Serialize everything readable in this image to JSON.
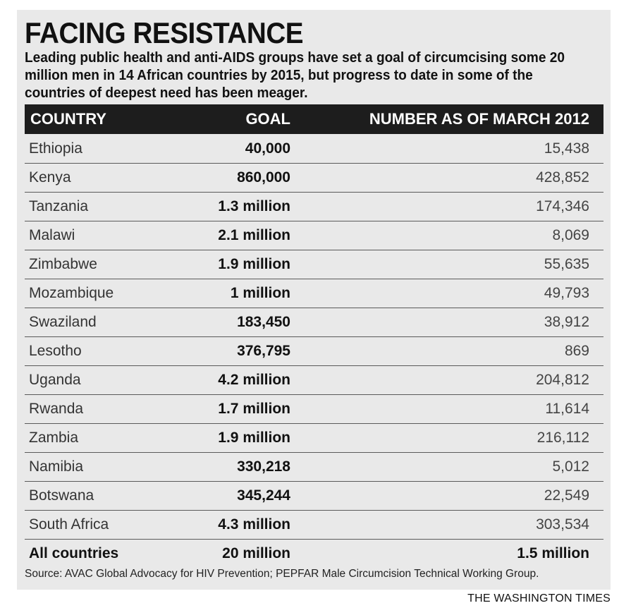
{
  "title": "FACING RESISTANCE",
  "subtitle": "Leading public health and anti-AIDS groups have set a goal of circumcising some 20 million men in 14 African countries by 2015, but progress to date in some of the countries of deepest need has been meager.",
  "source": "Source: AVAC Global Advocacy for HIV Prevention; PEPFAR Male Circumcision Technical Working Group.",
  "credit": "THE WASHINGTON TIMES",
  "chart_data": {
    "type": "table",
    "columns": [
      "COUNTRY",
      "GOAL",
      "NUMBER AS OF MARCH 2012"
    ],
    "rows": [
      {
        "country": "Ethiopia",
        "goal": "40,000",
        "number": "15,438"
      },
      {
        "country": "Kenya",
        "goal": "860,000",
        "number": "428,852"
      },
      {
        "country": "Tanzania",
        "goal": "1.3 million",
        "number": "174,346"
      },
      {
        "country": "Malawi",
        "goal": "2.1 million",
        "number": "8,069"
      },
      {
        "country": "Zimbabwe",
        "goal": "1.9 million",
        "number": "55,635"
      },
      {
        "country": "Mozambique",
        "goal": "1 million",
        "number": "49,793"
      },
      {
        "country": "Swaziland",
        "goal": "183,450",
        "number": "38,912"
      },
      {
        "country": "Lesotho",
        "goal": "376,795",
        "number": "869"
      },
      {
        "country": "Uganda",
        "goal": "4.2 million",
        "number": "204,812"
      },
      {
        "country": "Rwanda",
        "goal": "1.7 million",
        "number": "11,614"
      },
      {
        "country": "Zambia",
        "goal": "1.9 million",
        "number": "216,112"
      },
      {
        "country": "Namibia",
        "goal": "330,218",
        "number": "5,012"
      },
      {
        "country": "Botswana",
        "goal": "345,244",
        "number": "22,549"
      },
      {
        "country": "South Africa",
        "goal": "4.3 million",
        "number": "303,534"
      }
    ],
    "total": {
      "country": "All countries",
      "goal": "20 million",
      "number": "1.5 million"
    }
  }
}
